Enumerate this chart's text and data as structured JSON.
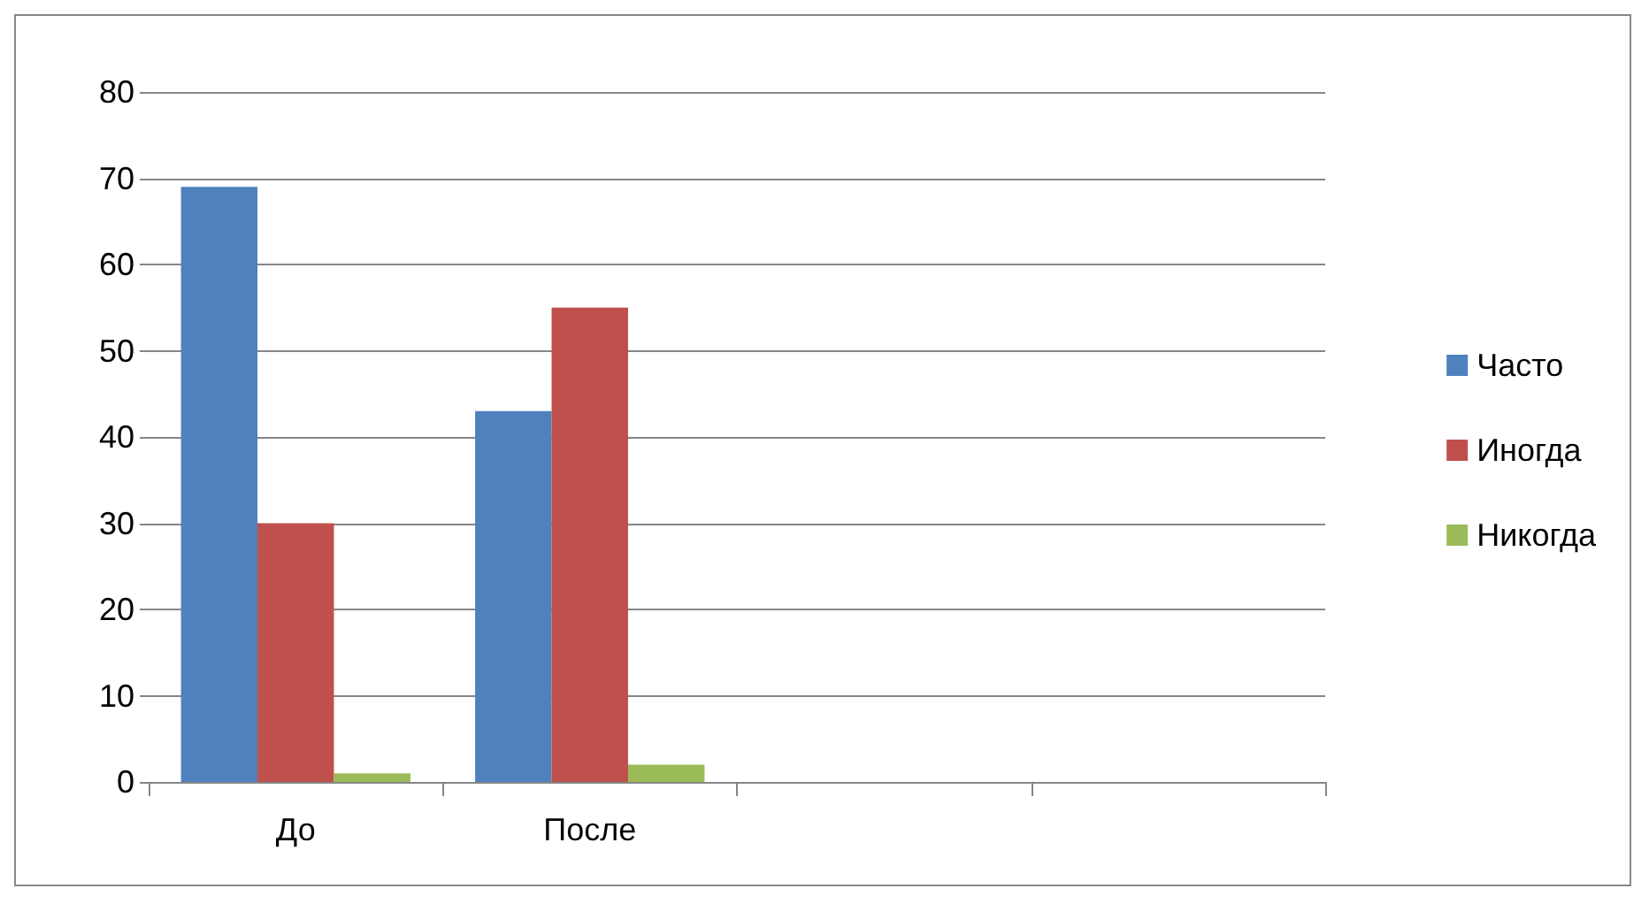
{
  "chart_data": {
    "type": "bar",
    "categories": [
      "До",
      "После",
      null,
      null
    ],
    "series": [
      {
        "name": "Часто",
        "color": "#4f81bd",
        "values": [
          69,
          43,
          null,
          null
        ]
      },
      {
        "name": "Иногда",
        "color": "#c0504d",
        "values": [
          30,
          55,
          null,
          null
        ]
      },
      {
        "name": "Никогда",
        "color": "#9bbb59",
        "values": [
          1,
          2,
          null,
          null
        ]
      }
    ],
    "ylim": [
      0,
      80
    ],
    "yticks": [
      0,
      10,
      20,
      30,
      40,
      50,
      60,
      70,
      80
    ],
    "grid": "y",
    "legend": "right"
  }
}
